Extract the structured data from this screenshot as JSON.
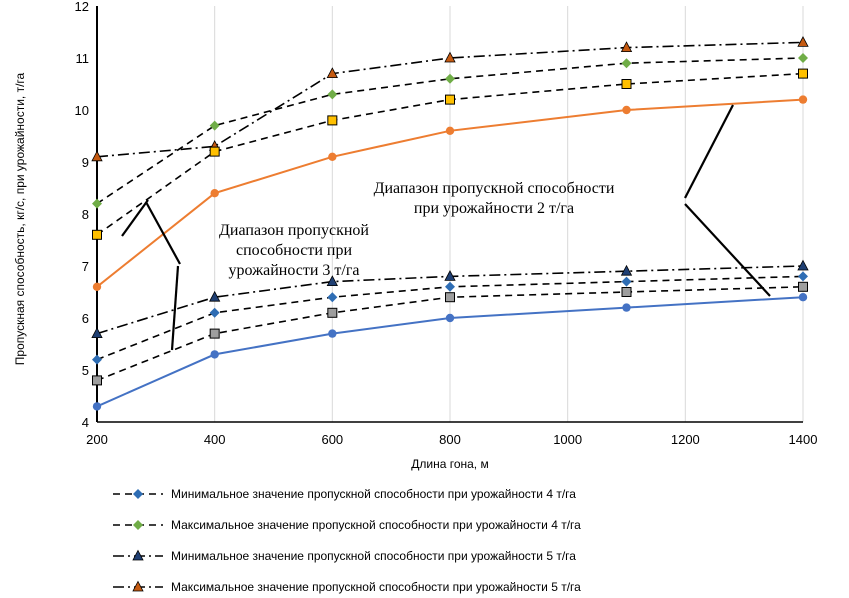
{
  "chart_data": {
    "type": "line",
    "xlabel": "Длина гона, м",
    "ylabel": "Пропускная способность, кг/с, при урожайности, т/га",
    "xlim": [
      200,
      1400
    ],
    "ylim": [
      4,
      12
    ],
    "x_ticks": [
      "200",
      "400",
      "600",
      "800",
      "1000",
      "1200",
      "1400"
    ],
    "y_ticks": [
      "4",
      "5",
      "6",
      "7",
      "8",
      "9",
      "10",
      "11",
      "12"
    ],
    "grid": "vertical",
    "x": [
      200,
      400,
      600,
      800,
      1100,
      1400
    ],
    "series": [
      {
        "name": "Минимальное значение пропускной способности при урожайности 4 т/га",
        "color": "#2e6db4",
        "marker": "diamond",
        "dash": "dashed",
        "values": [
          5.2,
          6.1,
          6.4,
          6.6,
          6.7,
          6.8
        ]
      },
      {
        "name": "Максимальное значение пропускной способности при урожайности 4 т/га",
        "color": "#70ad47",
        "marker": "diamond",
        "dash": "dashed",
        "values": [
          8.2,
          9.7,
          10.3,
          10.6,
          10.9,
          11.0
        ]
      },
      {
        "name": "Минимальное значение пропускной способности при урожайности 5 т/га",
        "color": "#1f3f73",
        "marker": "triangle",
        "dash": "dashdot",
        "values": [
          5.7,
          6.4,
          6.7,
          6.8,
          6.9,
          7.0
        ]
      },
      {
        "name": "Максимальное значение пропускной способности при урожайности 5 т/га",
        "color": "#c55a11",
        "marker": "triangle",
        "dash": "dashdot",
        "values": [
          9.1,
          9.3,
          10.7,
          11.0,
          11.2,
          11.3
        ]
      },
      {
        "name": "",
        "color": "#9e9e9e",
        "marker": "square",
        "dash": "dashed",
        "values": [
          4.8,
          5.7,
          6.1,
          6.4,
          6.5,
          6.6
        ]
      },
      {
        "name": "",
        "color": "#ffc000",
        "marker": "square",
        "dash": "dashed",
        "values": [
          7.6,
          9.2,
          9.8,
          10.2,
          10.5,
          10.7
        ]
      },
      {
        "name": "",
        "color": "#4472c4",
        "marker": "circle",
        "dash": "solid",
        "values": [
          4.3,
          5.3,
          5.7,
          6.0,
          6.2,
          6.4
        ]
      },
      {
        "name": "",
        "color": "#ed7d31",
        "marker": "circle",
        "dash": "solid",
        "values": [
          6.6,
          8.4,
          9.1,
          9.6,
          10.0,
          10.2
        ]
      }
    ],
    "annotations": [
      {
        "text": [
          "Диапазон пропускной способности",
          "при урожайности 2 т/га"
        ]
      },
      {
        "text": [
          "Диапазон пропускной",
          "способности при",
          "урожайности 3 т/га"
        ]
      }
    ]
  }
}
